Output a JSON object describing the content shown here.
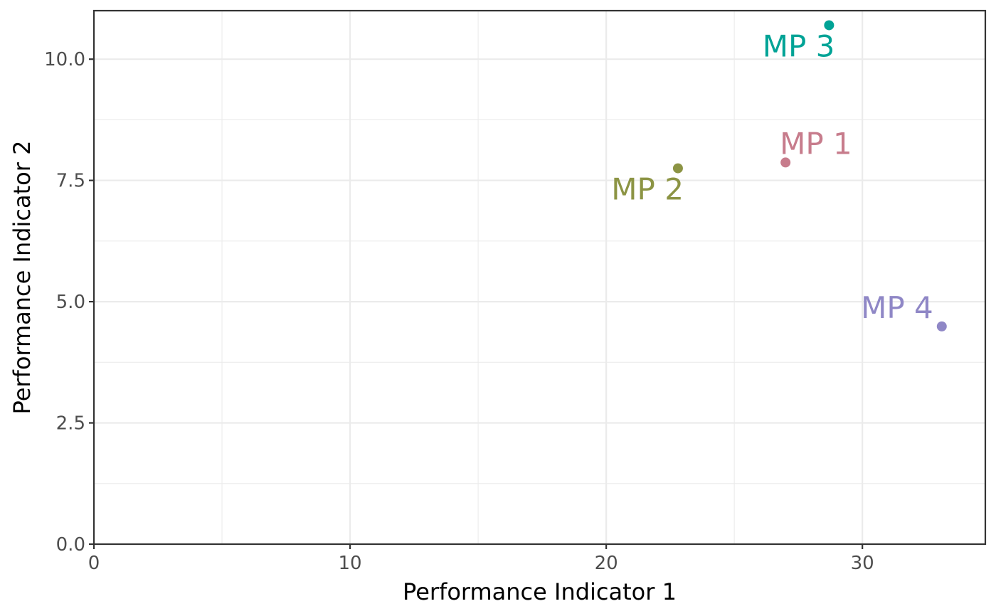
{
  "chart_data": {
    "type": "scatter",
    "title": "",
    "xlabel": "Performance Indicator 1",
    "ylabel": "Performance Indicator 2",
    "xlim": [
      0,
      34.8
    ],
    "ylim": [
      0,
      11.0
    ],
    "x_ticks": [
      0,
      10,
      20,
      30
    ],
    "x_tick_labels": [
      "0",
      "10",
      "20",
      "30"
    ],
    "x_minor_ticks": [
      5,
      15,
      25
    ],
    "y_ticks": [
      0,
      2.5,
      5,
      7.5,
      10
    ],
    "y_tick_labels": [
      "0.0",
      "2.5",
      "5.0",
      "7.5",
      "10.0"
    ],
    "y_minor_ticks": [
      1.25,
      3.75,
      6.25,
      8.75
    ],
    "grid": true,
    "legend": "none",
    "points": [
      {
        "label": "MP 1",
        "x": 27.0,
        "y": 7.87,
        "color": "#C77C8C",
        "label_pos": "above-right"
      },
      {
        "label": "MP 2",
        "x": 22.8,
        "y": 7.75,
        "color": "#8C9444",
        "label_pos": "below-left"
      },
      {
        "label": "MP 3",
        "x": 28.7,
        "y": 10.7,
        "color": "#00A396",
        "label_pos": "below-left"
      },
      {
        "label": "MP 4",
        "x": 33.1,
        "y": 4.49,
        "color": "#8F87C6",
        "label_pos": "above-left"
      }
    ]
  }
}
